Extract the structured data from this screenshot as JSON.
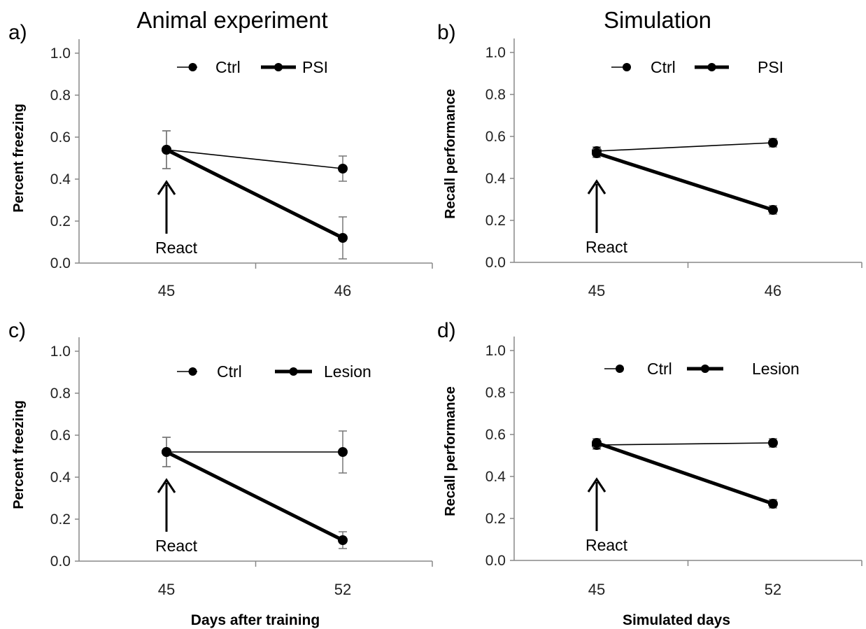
{
  "titles": {
    "left": "Animal experiment",
    "right": "Simulation"
  },
  "chart_data": [
    {
      "type": "line",
      "panel_label": "a)",
      "categories": [
        "45",
        "46"
      ],
      "ylabel": "Percent freezing",
      "xlabel": "",
      "ylim": [
        0,
        1.0
      ],
      "yticks": [
        "0.0",
        "0.2",
        "0.4",
        "0.6",
        "0.8",
        "1.0"
      ],
      "annotation": "React",
      "legend_position": "top",
      "series": [
        {
          "name": "Ctrl",
          "values": [
            0.54,
            0.45
          ],
          "errors": [
            0.09,
            0.06
          ],
          "style": "thin"
        },
        {
          "name": "PSI",
          "values": [
            0.54,
            0.12
          ],
          "errors": [
            0.09,
            0.1
          ],
          "style": "thick"
        }
      ]
    },
    {
      "type": "line",
      "panel_label": "b)",
      "categories": [
        "45",
        "46"
      ],
      "ylabel": "Recall performance",
      "xlabel": "",
      "ylim": [
        0,
        1.0
      ],
      "yticks": [
        "0.0",
        "0.2",
        "0.4",
        "0.6",
        "0.8",
        "1.0"
      ],
      "annotation": "React",
      "legend_position": "top",
      "series": [
        {
          "name": "Ctrl",
          "values": [
            0.53,
            0.57
          ],
          "errors": [
            0.02,
            0.02
          ],
          "style": "thin"
        },
        {
          "name": "PSI",
          "values": [
            0.52,
            0.25
          ],
          "errors": [
            0.02,
            0.02
          ],
          "style": "thick"
        }
      ]
    },
    {
      "type": "line",
      "panel_label": "c)",
      "categories": [
        "45",
        "52"
      ],
      "ylabel": "Percent freezing",
      "xlabel": "Days after training",
      "ylim": [
        0,
        1.0
      ],
      "yticks": [
        "0.0",
        "0.2",
        "0.4",
        "0.6",
        "0.8",
        "1.0"
      ],
      "annotation": "React",
      "legend_position": "top",
      "series": [
        {
          "name": "Ctrl",
          "values": [
            0.52,
            0.52
          ],
          "errors": [
            0.07,
            0.1
          ],
          "style": "thin"
        },
        {
          "name": "Lesion",
          "values": [
            0.52,
            0.1
          ],
          "errors": [
            0.07,
            0.04
          ],
          "style": "thick"
        }
      ]
    },
    {
      "type": "line",
      "panel_label": "d)",
      "categories": [
        "45",
        "52"
      ],
      "ylabel": "Recall performance",
      "xlabel": "Simulated days",
      "ylim": [
        0,
        1.0
      ],
      "yticks": [
        "0.0",
        "0.2",
        "0.4",
        "0.6",
        "0.8",
        "1.0"
      ],
      "annotation": "React",
      "legend_position": "top",
      "series": [
        {
          "name": "Ctrl",
          "values": [
            0.55,
            0.56
          ],
          "errors": [
            0.02,
            0.02
          ],
          "style": "thin"
        },
        {
          "name": "Lesion",
          "values": [
            0.56,
            0.27
          ],
          "errors": [
            0.02,
            0.02
          ],
          "style": "thick"
        }
      ]
    }
  ]
}
